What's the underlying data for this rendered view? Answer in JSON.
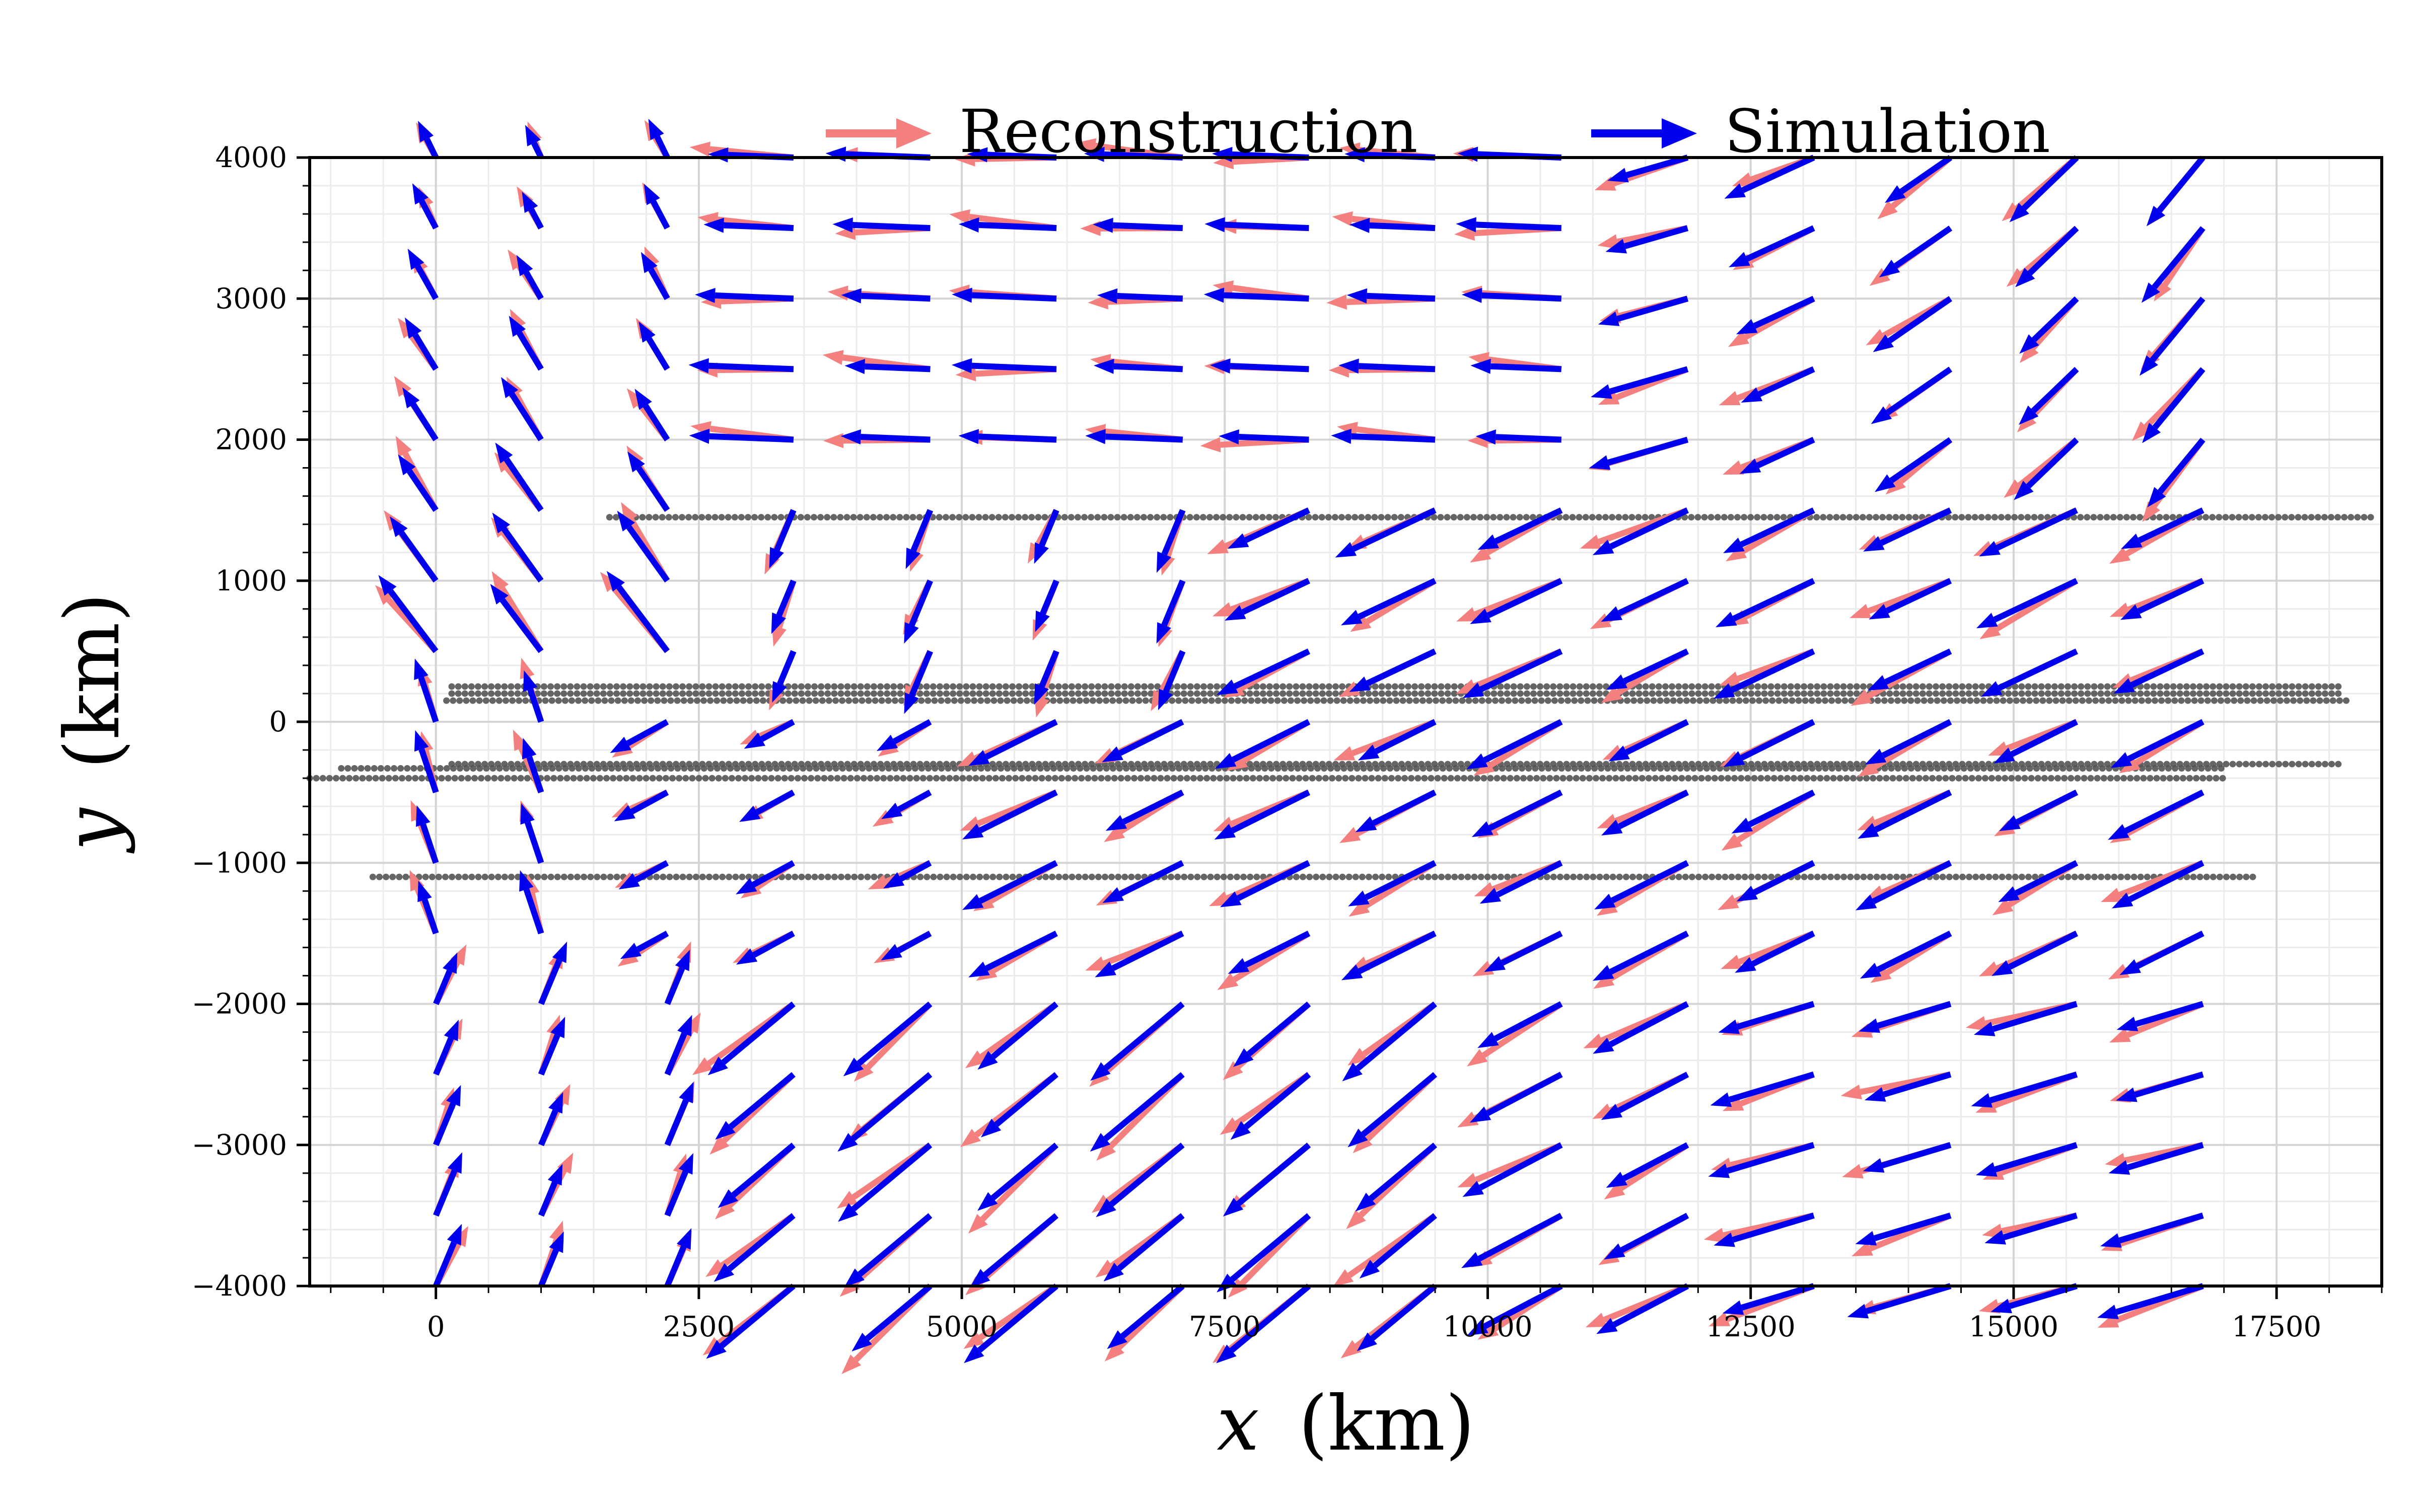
{
  "chart_data": {
    "type": "quiver",
    "xlabel_var": "x",
    "xlabel_unit": "(km)",
    "ylabel_var": "y",
    "ylabel_unit": "(km)",
    "xlim": [
      -1200,
      18500
    ],
    "ylim": [
      -4000,
      4000
    ],
    "x_ticks": [
      0,
      2500,
      5000,
      7500,
      10000,
      12500,
      15000,
      17500
    ],
    "x_tick_labels": [
      "0",
      "2500",
      "5000",
      "7500",
      "10000",
      "12500",
      "15000",
      "17500"
    ],
    "y_ticks": [
      -4000,
      -3000,
      -2000,
      -1000,
      0,
      1000,
      2000,
      3000,
      4000
    ],
    "y_tick_labels": [
      "−4000",
      "−3000",
      "−2000",
      "−1000",
      "0",
      "1000",
      "2000",
      "3000",
      "4000"
    ],
    "grid": true,
    "legend_position": "top-center",
    "series": [
      {
        "name": "Reconstruction",
        "color": "#f47f7f"
      },
      {
        "name": "Simulation",
        "color": "#0000ee"
      }
    ],
    "grid_x": [
      0,
      1000,
      2200,
      3400,
      4700,
      5900,
      7100,
      8300,
      9500,
      10700,
      11900,
      13100,
      14400,
      15600,
      16800
    ],
    "grid_y": [
      -4000,
      -3500,
      -3000,
      -2500,
      -2000,
      -1500,
      -1000,
      -500,
      0,
      500,
      1000,
      1500,
      2000,
      2500,
      3000,
      3500,
      4000
    ],
    "track_color": "#555555",
    "tracks": [
      {
        "y": 1450,
        "x_start": 1650,
        "x_end": 18450
      },
      {
        "y": 250,
        "x_start": 150,
        "x_end": 18100
      },
      {
        "y": 200,
        "x_start": 150,
        "x_end": 18100
      },
      {
        "y": 150,
        "x_start": 100,
        "x_end": 18200
      },
      {
        "y": -300,
        "x_start": 150,
        "x_end": 18100
      },
      {
        "y": -330,
        "x_start": -900,
        "x_end": 17000
      },
      {
        "y": -400,
        "x_start": -1200,
        "x_end": 17000
      },
      {
        "y": -1100,
        "x_start": -600,
        "x_end": 17300
      }
    ]
  }
}
